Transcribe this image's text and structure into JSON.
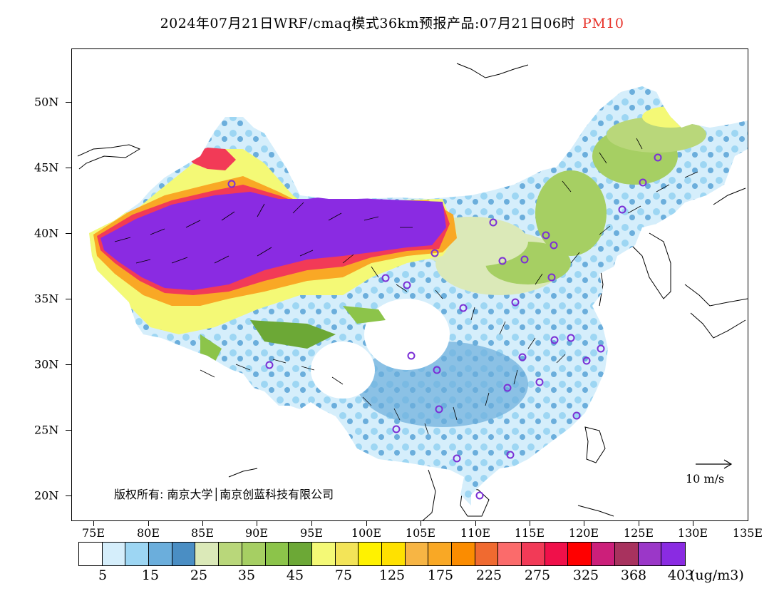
{
  "title": {
    "main": "2024年07月21日WRF/cmaq模式36km预报产品:07月21日06时",
    "pollutant": "PM10",
    "pollutant_color": "#e8342c"
  },
  "axes": {
    "y_labels": [
      "50N",
      "45N",
      "40N",
      "35N",
      "30N",
      "25N",
      "20N"
    ],
    "x_labels": [
      "75E",
      "80E",
      "85E",
      "90E",
      "95E",
      "100E",
      "105E",
      "110E",
      "115E",
      "120E",
      "125E",
      "130E",
      "135E"
    ]
  },
  "copyright": "版权所有: 南京大学│南京创蓝科技有限公司",
  "wind_reference": "10 m/s",
  "legend": {
    "unit": "(ug/m3)",
    "labels": [
      "5",
      "15",
      "25",
      "35",
      "45",
      "75",
      "125",
      "175",
      "225",
      "275",
      "325",
      "368",
      "403"
    ],
    "colors": [
      "#ffffff",
      "#d5eefb",
      "#9dd6f3",
      "#6baedc",
      "#4a8ec4",
      "#dbe9b8",
      "#b9d77a",
      "#a6cf63",
      "#8cc44a",
      "#6ca836",
      "#f4f976",
      "#f3e458",
      "#fff200",
      "#ffe100",
      "#f7b544",
      "#f9a825",
      "#fb8c00",
      "#f06a30",
      "#fb6b6b",
      "#f23a57",
      "#f0104a",
      "#ff0000",
      "#cc1f7a",
      "#a8325e",
      "#9b37c8",
      "#8a2be2"
    ]
  },
  "map_colors": {
    "white": "#ffffff",
    "light_blue": "#d5eefb",
    "blue": "#9dd6f3",
    "mid_blue": "#6baedc",
    "pale_green": "#dbe9b8",
    "green": "#a6cf63",
    "dark_green": "#6ca836",
    "yellow": "#f4f976",
    "gold": "#fff200",
    "orange": "#f9a825",
    "red": "#f23a57",
    "magenta": "#cc1f7a",
    "purple": "#8a2be2",
    "station_marker": "#7b2fd6"
  }
}
